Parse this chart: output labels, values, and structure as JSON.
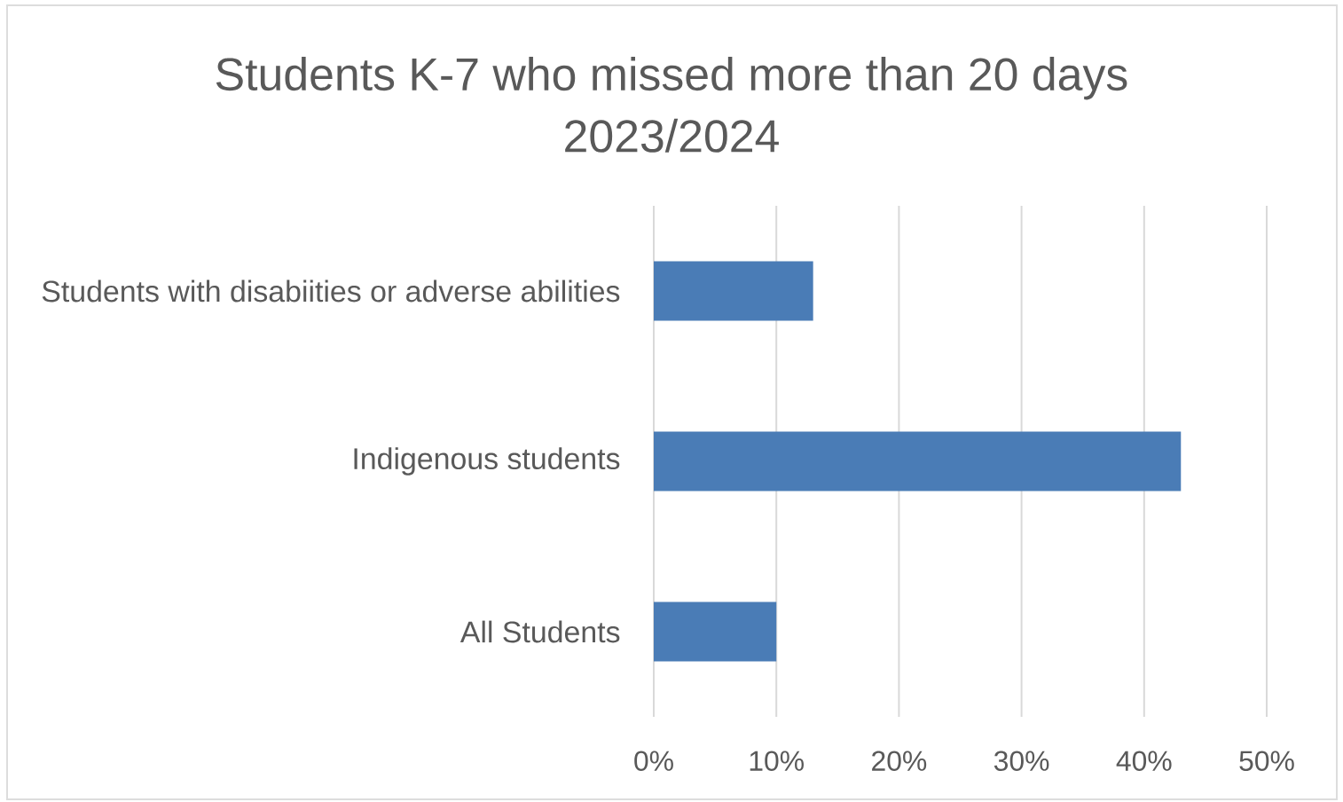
{
  "chart_data": {
    "type": "bar",
    "orientation": "horizontal",
    "title": "Students K-7 who missed more than 20 days 2023/2024",
    "categories": [
      "Students with disabiities or adverse abilities",
      "Indigenous students",
      "All Students"
    ],
    "values": [
      13,
      43,
      10
    ],
    "color": "#4a7cb6",
    "xlim": [
      0,
      50
    ],
    "xticks": [
      {
        "value": 0,
        "label": "0%"
      },
      {
        "value": 10,
        "label": "10%"
      },
      {
        "value": 20,
        "label": "20%"
      },
      {
        "value": 30,
        "label": "30%"
      },
      {
        "value": 40,
        "label": "40%"
      },
      {
        "value": 50,
        "label": "50%"
      }
    ],
    "grid": "x"
  }
}
